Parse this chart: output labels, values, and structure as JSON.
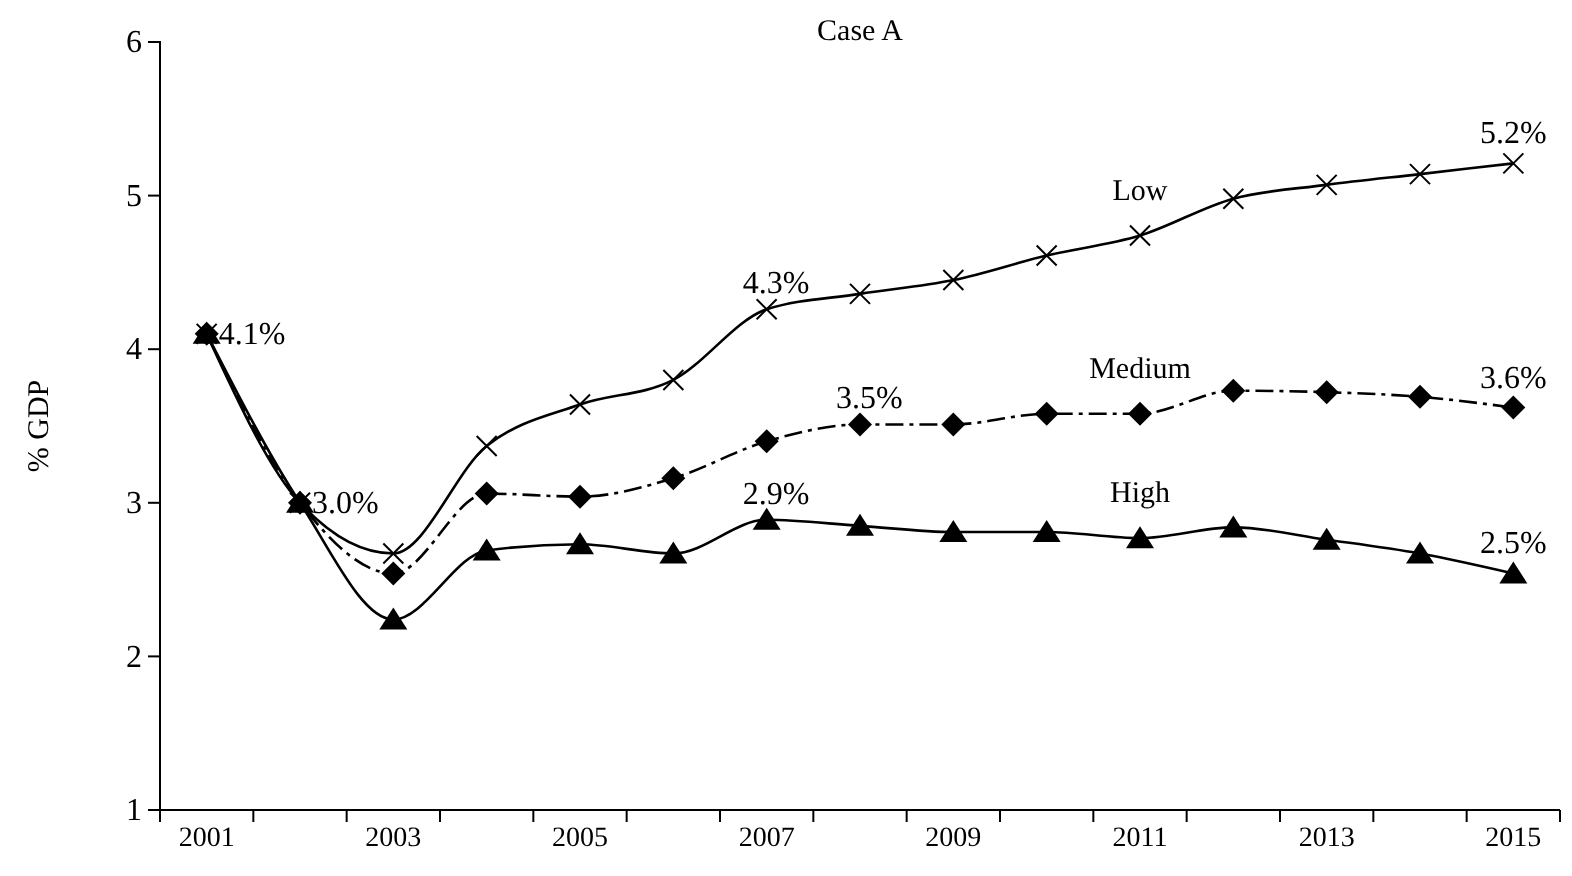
{
  "chart_data": {
    "type": "line",
    "title": "Case A",
    "ylabel": "% GDP",
    "categories": [
      "2001",
      null,
      "2003",
      null,
      "2005",
      null,
      "2007",
      null,
      "2009",
      null,
      "2011",
      null,
      "2013",
      null,
      "2015"
    ],
    "ylim": [
      1,
      6
    ],
    "yticks": [
      1,
      2,
      3,
      4,
      5,
      6
    ],
    "grid": false,
    "series": [
      {
        "name": "Low",
        "color": "#000000",
        "marker": "cross",
        "line_style": "solid",
        "values": [
          4.1,
          3.0,
          2.67,
          3.37,
          3.64,
          3.8,
          4.26,
          4.36,
          4.45,
          4.61,
          4.74,
          4.98,
          5.07,
          5.14,
          5.21
        ],
        "value_labels": [
          "4.1%",
          "3.0%",
          null,
          null,
          null,
          null,
          "4.3%",
          null,
          null,
          null,
          null,
          null,
          null,
          null,
          "5.2%"
        ]
      },
      {
        "name": "Medium",
        "color": "#000000",
        "marker": "diamond",
        "line_style": "dashed",
        "values": [
          4.1,
          3.0,
          2.54,
          3.06,
          3.04,
          3.16,
          3.4,
          3.51,
          3.51,
          3.58,
          3.58,
          3.73,
          3.72,
          3.69,
          3.62
        ],
        "value_labels": [
          null,
          null,
          null,
          null,
          null,
          null,
          null,
          "3.5%",
          null,
          null,
          null,
          null,
          null,
          null,
          "3.6%"
        ]
      },
      {
        "name": "High",
        "color": "#000000",
        "marker": "triangle",
        "line_style": "solid",
        "values": [
          4.1,
          3.0,
          2.24,
          2.69,
          2.73,
          2.67,
          2.89,
          2.85,
          2.81,
          2.81,
          2.77,
          2.84,
          2.76,
          2.67,
          2.54
        ],
        "value_labels": [
          null,
          null,
          null,
          null,
          null,
          null,
          "2.9%",
          null,
          null,
          null,
          null,
          null,
          null,
          null,
          "2.5%"
        ]
      }
    ]
  }
}
